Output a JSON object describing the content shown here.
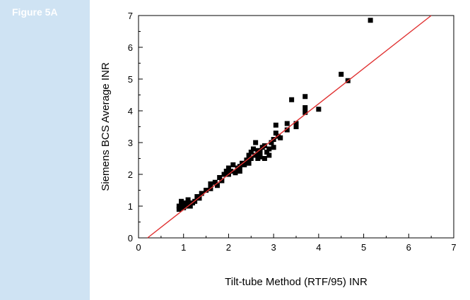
{
  "figure": {
    "label": "Figure 5A"
  },
  "chart_data": {
    "type": "scatter",
    "title": "",
    "xlabel": "Tilt-tube Method (RTF/95) INR",
    "ylabel": "Siemens BCS Average INR",
    "xlim": [
      0,
      7
    ],
    "ylim": [
      0,
      7
    ],
    "x_ticks": [
      "0",
      "1",
      "2",
      "3",
      "4",
      "5",
      "6",
      "7"
    ],
    "y_ticks": [
      "0",
      "1",
      "2",
      "3",
      "4",
      "5",
      "6",
      "7"
    ],
    "grid": false,
    "legend": "none",
    "colors": {
      "points": "#000000",
      "fit_line": "#e03030"
    },
    "fit_line": {
      "x": [
        0.2,
        6.5
      ],
      "y": [
        0.0,
        7.0
      ]
    },
    "points": [
      [
        0.9,
        0.9
      ],
      [
        0.9,
        1.0
      ],
      [
        0.95,
        1.05
      ],
      [
        1.0,
        0.95
      ],
      [
        1.0,
        1.1
      ],
      [
        1.05,
        1.0
      ],
      [
        1.1,
        1.05
      ],
      [
        1.15,
        1.0
      ],
      [
        1.2,
        1.1
      ],
      [
        0.95,
        1.15
      ],
      [
        1.25,
        1.15
      ],
      [
        1.3,
        1.3
      ],
      [
        1.4,
        1.4
      ],
      [
        1.5,
        1.5
      ],
      [
        1.6,
        1.55
      ],
      [
        1.6,
        1.7
      ],
      [
        1.7,
        1.75
      ],
      [
        1.8,
        1.9
      ],
      [
        1.85,
        1.8
      ],
      [
        1.9,
        2.0
      ],
      [
        1.95,
        2.1
      ],
      [
        2.0,
        2.0
      ],
      [
        2.0,
        2.2
      ],
      [
        2.05,
        2.1
      ],
      [
        2.1,
        2.3
      ],
      [
        2.15,
        2.05
      ],
      [
        2.2,
        2.2
      ],
      [
        2.25,
        2.25
      ],
      [
        2.3,
        2.35
      ],
      [
        2.35,
        2.3
      ],
      [
        2.4,
        2.45
      ],
      [
        2.45,
        2.6
      ],
      [
        2.5,
        2.5
      ],
      [
        2.5,
        2.7
      ],
      [
        2.55,
        2.8
      ],
      [
        2.6,
        2.6
      ],
      [
        2.6,
        3.0
      ],
      [
        2.65,
        2.5
      ],
      [
        2.7,
        2.7
      ],
      [
        2.75,
        2.85
      ],
      [
        2.8,
        2.5
      ],
      [
        2.8,
        2.9
      ],
      [
        2.85,
        2.7
      ],
      [
        2.9,
        2.8
      ],
      [
        2.95,
        3.0
      ],
      [
        3.0,
        2.85
      ],
      [
        3.0,
        3.1
      ],
      [
        3.05,
        3.3
      ],
      [
        3.05,
        3.55
      ],
      [
        3.1,
        3.2
      ],
      [
        3.3,
        3.4
      ],
      [
        3.3,
        3.6
      ],
      [
        3.4,
        4.35
      ],
      [
        3.5,
        3.5
      ],
      [
        3.5,
        3.6
      ],
      [
        3.7,
        3.95
      ],
      [
        3.7,
        4.1
      ],
      [
        3.7,
        4.45
      ],
      [
        4.0,
        4.05
      ],
      [
        4.5,
        5.15
      ],
      [
        4.65,
        4.95
      ],
      [
        5.15,
        6.85
      ],
      [
        2.0,
        2.05
      ],
      [
        2.25,
        2.1
      ],
      [
        2.45,
        2.35
      ],
      [
        2.65,
        2.75
      ],
      [
        2.9,
        2.6
      ],
      [
        1.75,
        1.65
      ],
      [
        1.1,
        1.2
      ],
      [
        1.35,
        1.25
      ],
      [
        2.7,
        2.55
      ],
      [
        3.15,
        3.15
      ]
    ]
  }
}
